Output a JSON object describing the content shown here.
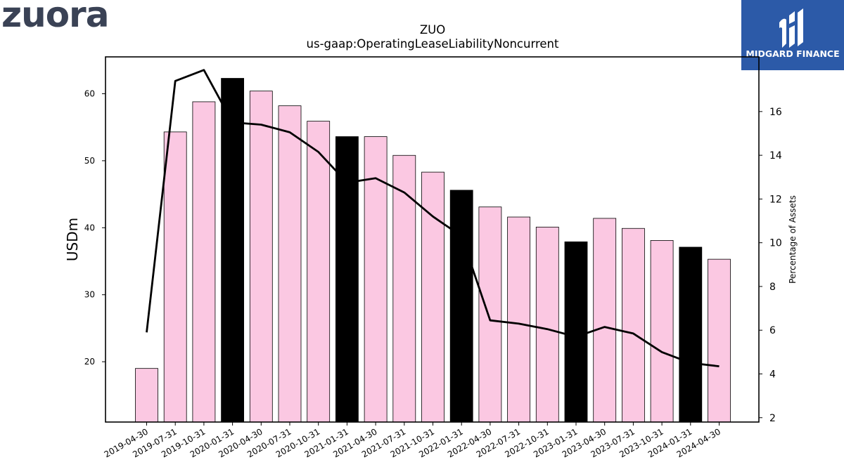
{
  "logos": {
    "left": "zuora",
    "right": "MIDGARD FINANCE"
  },
  "chart_data": {
    "type": "bar+line",
    "title": "ZUO",
    "subtitle": "us-gaap:OperatingLeaseLiabilityNoncurrent",
    "ylabel_left": "USDm",
    "ylabel_right": "Percentage of Assets",
    "ylim_left": [
      11,
      65.5
    ],
    "ylim_right": [
      1.8,
      18.5
    ],
    "yticks_left": [
      20,
      30,
      40,
      50,
      60
    ],
    "yticks_right": [
      2,
      4,
      6,
      8,
      10,
      12,
      14,
      16
    ],
    "categories": [
      "2019-04-30",
      "2019-07-31",
      "2019-10-31",
      "2020-01-31",
      "2020-04-30",
      "2020-07-31",
      "2020-10-31",
      "2021-01-31",
      "2021-04-30",
      "2021-07-31",
      "2021-10-31",
      "2022-01-31",
      "2022-04-30",
      "2022-07-31",
      "2022-10-31",
      "2023-01-31",
      "2023-04-30",
      "2023-07-31",
      "2023-10-31",
      "2024-01-31",
      "2024-04-30"
    ],
    "bars": {
      "name": "USDm",
      "values": [
        19.0,
        54.3,
        58.8,
        62.3,
        60.4,
        58.2,
        55.9,
        53.6,
        53.6,
        50.8,
        48.3,
        45.6,
        43.1,
        41.6,
        40.1,
        37.9,
        41.4,
        39.9,
        38.1,
        37.1,
        35.3
      ],
      "highlight": [
        false,
        false,
        false,
        true,
        false,
        false,
        false,
        true,
        false,
        false,
        false,
        true,
        false,
        false,
        false,
        true,
        false,
        false,
        false,
        true,
        false
      ],
      "colors": {
        "normal": "#fbc8e2",
        "highlight": "#000000",
        "edge": "#000000"
      }
    },
    "line": {
      "name": "Percentage of Assets",
      "values": [
        5.9,
        17.4,
        17.9,
        15.5,
        15.4,
        15.05,
        14.15,
        12.75,
        12.95,
        12.3,
        11.2,
        10.3,
        6.45,
        6.3,
        6.05,
        5.7,
        6.15,
        5.85,
        5.0,
        4.5,
        4.35
      ],
      "color": "#000000"
    }
  }
}
